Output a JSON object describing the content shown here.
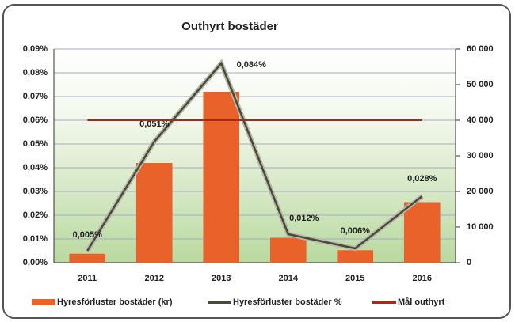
{
  "chart_data": {
    "type": "combo",
    "title": "Outhyrt bostäder",
    "categories": [
      "2011",
      "2012",
      "2013",
      "2014",
      "2015",
      "2016"
    ],
    "series": [
      {
        "name": "Hyresförluster bostäder (kr)",
        "type": "bar",
        "axis": "y2",
        "color": "#e8622a",
        "values": [
          2500,
          28000,
          48000,
          7000,
          3500,
          17000
        ]
      },
      {
        "name": "Hyresförluster bostäder %",
        "type": "line",
        "axis": "y",
        "color": "#4a4a3c",
        "values": [
          0.005,
          0.051,
          0.084,
          0.012,
          0.006,
          0.028
        ],
        "value_labels": [
          "0,005%",
          "0,051%",
          "0,084%",
          "0,012%",
          "0,006%",
          "0,028%"
        ]
      },
      {
        "name": "Mål outhyrt",
        "type": "line",
        "axis": "y",
        "color": "#a8281e",
        "values": [
          0.06,
          0.06,
          0.06,
          0.06,
          0.06,
          0.06
        ]
      }
    ],
    "ylim": [
      0,
      0.09
    ],
    "yticks": [
      {
        "value": 0,
        "label": "0,00%"
      },
      {
        "value": 0.01,
        "label": "0,01%"
      },
      {
        "value": 0.02,
        "label": "0,02%"
      },
      {
        "value": 0.03,
        "label": "0,03%"
      },
      {
        "value": 0.04,
        "label": "0,04%"
      },
      {
        "value": 0.05,
        "label": "0,05%"
      },
      {
        "value": 0.06,
        "label": "0,06%"
      },
      {
        "value": 0.07,
        "label": "0,07%"
      },
      {
        "value": 0.08,
        "label": "0,08%"
      },
      {
        "value": 0.09,
        "label": "0,09%"
      }
    ],
    "y2lim": [
      0,
      60000
    ],
    "y2ticks": [
      0,
      {
        "value": 10000,
        "label": "10 000"
      },
      {
        "value": 20000,
        "label": "20 000"
      },
      {
        "value": 30000,
        "label": "30 000"
      },
      {
        "value": 40000,
        "label": "40 000"
      },
      {
        "value": 50000,
        "label": "50 000"
      },
      {
        "value": 60000,
        "label": "60 000"
      }
    ],
    "grid": true,
    "legend": "bottom"
  }
}
